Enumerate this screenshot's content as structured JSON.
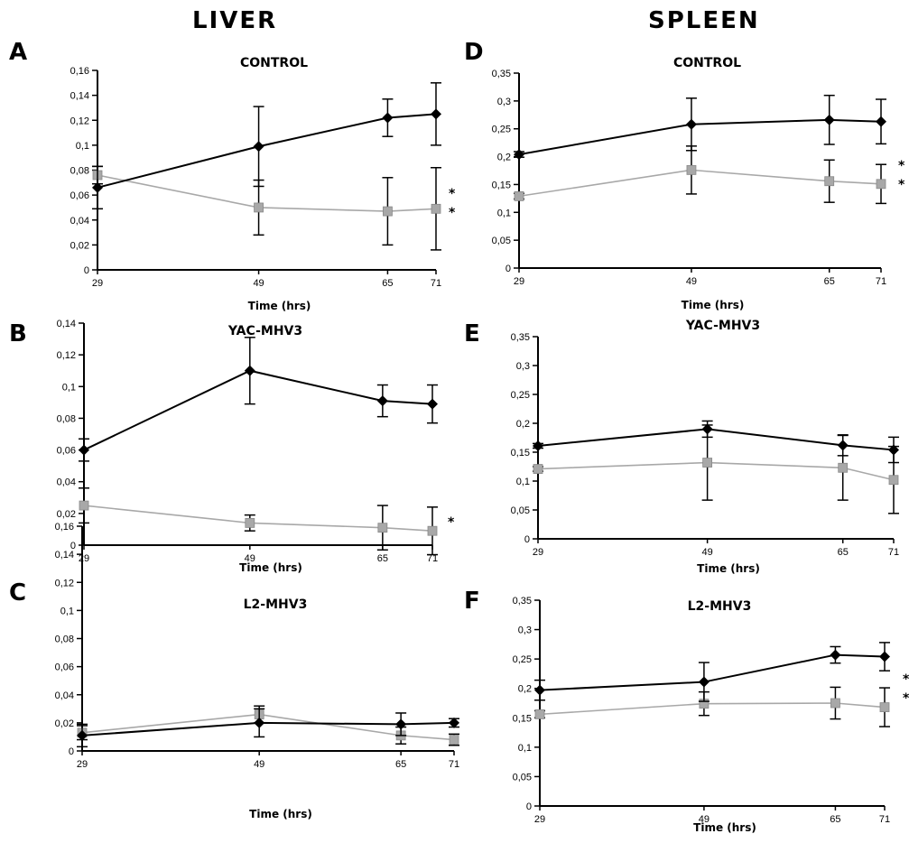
{
  "columns": [
    {
      "title": "LIVER"
    },
    {
      "title": "SPLEEN"
    }
  ],
  "colors": {
    "series_dark": "#000000",
    "series_light": "#a8a8a8"
  },
  "chart_data": [
    {
      "panel": "A",
      "type": "line",
      "title": "CONTROL",
      "xlabel": "Time (hrs)",
      "ylabel": "",
      "x": [
        29,
        49,
        65,
        71
      ],
      "ylim": [
        0,
        0.16
      ],
      "yticks": [
        "0",
        "0,02",
        "0,04",
        "0,06",
        "0,08",
        "0,1",
        "0,12",
        "0,14",
        "0,16"
      ],
      "series": [
        {
          "marker": "diamond",
          "values": [
            0.066,
            0.099,
            0.122,
            0.125
          ],
          "err": [
            0.017,
            0.032,
            0.015,
            0.025
          ]
        },
        {
          "marker": "square",
          "values": [
            0.076,
            0.05,
            0.047,
            0.049
          ],
          "err": [
            0.007,
            0.022,
            0.027,
            0.033
          ]
        }
      ],
      "annotations": [
        "*",
        "*"
      ]
    },
    {
      "panel": "B",
      "type": "line",
      "title": "YAC-MHV3",
      "xlabel": "Time (hrs)",
      "ylabel": "",
      "x": [
        29,
        49,
        65,
        71
      ],
      "ylim": [
        0,
        0.14
      ],
      "yticks": [
        "0",
        "0,02",
        "0,04",
        "0,06",
        "0,08",
        "0,1",
        "0,12",
        "0,14"
      ],
      "series": [
        {
          "marker": "diamond",
          "values": [
            0.06,
            0.11,
            0.091,
            0.089
          ],
          "err": [
            0.007,
            0.021,
            0.01,
            0.012
          ]
        },
        {
          "marker": "square",
          "values": [
            0.025,
            0.014,
            0.011,
            0.009
          ],
          "err": [
            0.011,
            0.005,
            0.014,
            0.015
          ]
        }
      ],
      "annotations": [
        "*"
      ]
    },
    {
      "panel": "C",
      "type": "line",
      "title": "L2-MHV3",
      "xlabel": "Time (hrs)",
      "ylabel": "",
      "x": [
        29,
        49,
        65,
        71
      ],
      "ylim": [
        0,
        0.16
      ],
      "yticks": [
        "0",
        "0,02",
        "0,04",
        "0,06",
        "0,08",
        "0,1",
        "0,12",
        "0,14",
        "0,16"
      ],
      "series": [
        {
          "marker": "diamond",
          "values": [
            0.011,
            0.02,
            0.019,
            0.02
          ],
          "err": [
            0.008,
            0.01,
            0.008,
            0.003
          ]
        },
        {
          "marker": "square",
          "values": [
            0.013,
            0.026,
            0.011,
            0.008
          ],
          "err": [
            0.005,
            0.006,
            0.006,
            0.004
          ]
        }
      ],
      "annotations": []
    },
    {
      "panel": "D",
      "type": "line",
      "title": "CONTROL",
      "xlabel": "Time (hrs)",
      "ylabel": "",
      "x": [
        29,
        49,
        65,
        71
      ],
      "ylim": [
        0,
        0.35
      ],
      "yticks": [
        "0",
        "0,05",
        "0,1",
        "0,15",
        "0,2",
        "0,25",
        "0,3",
        "0,35"
      ],
      "series": [
        {
          "marker": "diamond",
          "values": [
            0.204,
            0.258,
            0.266,
            0.263
          ],
          "err": [
            0.005,
            0.047,
            0.044,
            0.04
          ]
        },
        {
          "marker": "square",
          "values": [
            0.129,
            0.176,
            0.156,
            0.151
          ],
          "err": [
            0.005,
            0.043,
            0.038,
            0.035
          ]
        }
      ],
      "annotations": [
        "*",
        "*"
      ]
    },
    {
      "panel": "E",
      "type": "line",
      "title": "YAC-MHV3",
      "xlabel": "Time (hrs)",
      "ylabel": "",
      "x": [
        29,
        49,
        65,
        71
      ],
      "ylim": [
        0,
        0.35
      ],
      "yticks": [
        "0",
        "0,05",
        "0,1",
        "0,15",
        "0,2",
        "0,25",
        "0,3",
        "0,35"
      ],
      "series": [
        {
          "marker": "diamond",
          "values": [
            0.161,
            0.19,
            0.162,
            0.154
          ],
          "err": [
            0.004,
            0.014,
            0.018,
            0.022
          ]
        },
        {
          "marker": "square",
          "values": [
            0.121,
            0.132,
            0.123,
            0.102
          ],
          "err": [
            0.004,
            0.065,
            0.056,
            0.058
          ]
        }
      ],
      "annotations": []
    },
    {
      "panel": "F",
      "type": "line",
      "title": "L2-MHV3",
      "xlabel": "Time (hrs)",
      "ylabel": "",
      "x": [
        29,
        49,
        65,
        71
      ],
      "ylim": [
        0,
        0.35
      ],
      "yticks": [
        "0",
        "0,05",
        "0,1",
        "0,15",
        "0,2",
        "0,25",
        "0,3",
        "0,35"
      ],
      "series": [
        {
          "marker": "diamond",
          "values": [
            0.197,
            0.211,
            0.257,
            0.254
          ],
          "err": [
            0.017,
            0.033,
            0.014,
            0.024
          ]
        },
        {
          "marker": "square",
          "values": [
            0.156,
            0.174,
            0.175,
            0.168
          ],
          "err": [
            0.006,
            0.02,
            0.027,
            0.033
          ]
        }
      ],
      "annotations": [
        "*",
        "*"
      ]
    }
  ]
}
